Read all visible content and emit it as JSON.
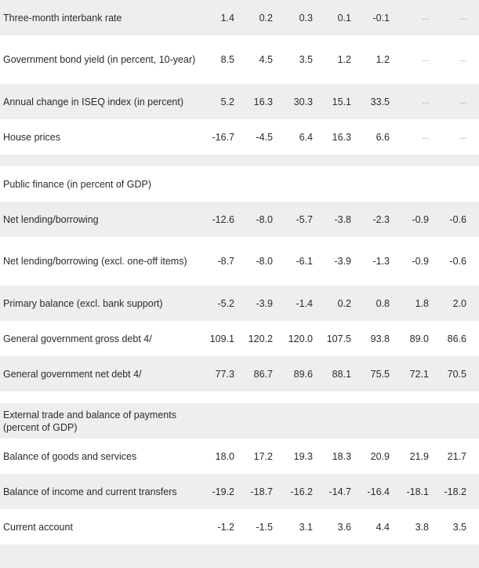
{
  "rows": [
    {
      "label": "Three-month interbank rate",
      "values": [
        "1.4",
        "0.2",
        "0.3",
        "0.1",
        "-0.1",
        "...",
        "..."
      ],
      "shade": true
    },
    {
      "label": "Government bond yield (in percent, 10-year)",
      "values": [
        "8.5",
        "4.5",
        "3.5",
        "1.2",
        "1.2",
        "...",
        "..."
      ],
      "shade": false
    },
    {
      "label": "Annual change in ISEQ index (in percent)",
      "values": [
        "5.2",
        "16.3",
        "30.3",
        "15.1",
        "33.5",
        "...",
        "..."
      ],
      "shade": true
    },
    {
      "label": "House prices",
      "values": [
        "-16.7",
        "-4.5",
        "6.4",
        "16.3",
        "6.6",
        "...",
        "..."
      ],
      "shade": false
    },
    {
      "label": "",
      "values": [
        "",
        "",
        "",
        "",
        "",
        "",
        ""
      ],
      "shade": true
    },
    {
      "label": "Public finance (in percent of GDP)",
      "values": [
        "",
        "",
        "",
        "",
        "",
        "",
        ""
      ],
      "shade": false
    },
    {
      "label": "Net lending/borrowing",
      "values": [
        "-12.6",
        "-8.0",
        "-5.7",
        "-3.8",
        "-2.3",
        "-0.9",
        "-0.6"
      ],
      "shade": true
    },
    {
      "label": "Net lending/borrowing (excl. one-off items)",
      "values": [
        "-8.7",
        "-8.0",
        "-6.1",
        "-3.9",
        "-1.3",
        "-0.9",
        "-0.6"
      ],
      "shade": false
    },
    {
      "label": "Primary balance (excl. bank support)",
      "values": [
        "-5.2",
        "-3.9",
        "-1.4",
        "0.2",
        "0.8",
        "1.8",
        "2.0"
      ],
      "shade": true
    },
    {
      "label": "General government gross debt 4/",
      "values": [
        "109.1",
        "120.2",
        "120.0",
        "107.5",
        "93.8",
        "89.0",
        "86.6"
      ],
      "shade": false
    },
    {
      "label": "General government net debt 4/",
      "values": [
        "77.3",
        "86.7",
        "89.6",
        "88.1",
        "75.5",
        "72.1",
        "70.5"
      ],
      "shade": true
    },
    {
      "label": "",
      "values": [
        "",
        "",
        "",
        "",
        "",
        "",
        ""
      ],
      "shade": false
    },
    {
      "label": "External trade and balance of payments (percent of GDP)",
      "values": [
        "",
        "",
        "",
        "",
        "",
        "",
        ""
      ],
      "shade": true
    },
    {
      "label": "Balance of goods and services",
      "values": [
        "18.0",
        "17.2",
        "19.3",
        "18.3",
        "20.9",
        "21.9",
        "21.7"
      ],
      "shade": false
    },
    {
      "label": "Balance of income and current transfers",
      "values": [
        "-19.2",
        "-18.7",
        "-16.2",
        "-14.7",
        "-16.4",
        "-18.1",
        "-18.2"
      ],
      "shade": true
    },
    {
      "label": "Current account",
      "values": [
        "-1.2",
        "-1.5",
        "3.1",
        "3.6",
        "4.4",
        "3.8",
        "3.5"
      ],
      "shade": false
    },
    {
      "label": "",
      "values": [
        "",
        "",
        "",
        "",
        "",
        "",
        ""
      ],
      "shade": true
    }
  ]
}
